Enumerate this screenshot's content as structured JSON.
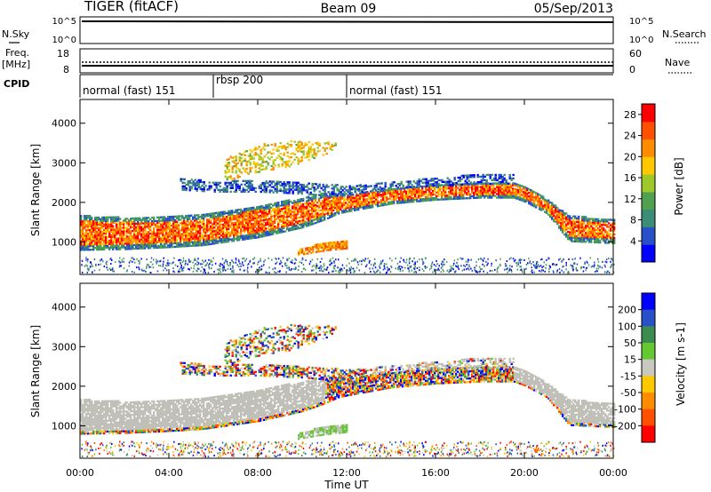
{
  "header": {
    "station": "TIGER (fitACF)",
    "beam": "Beam 09",
    "date": "05/Sep/2013"
  },
  "top_panels": {
    "nsky_label": "N.Sky",
    "nsky_ticks": [
      "10^5",
      "10^0"
    ],
    "nsearch_label": "N.Search",
    "freq_label_1": "Freq.",
    "freq_label_2": "[MHz]",
    "freq_ticks": [
      "18",
      "8"
    ],
    "nave_label": "Nave",
    "nave_ticks": [
      "60",
      "0"
    ],
    "cpid_label": "CPID",
    "cpid_segments": [
      {
        "label": "normal (fast) 151",
        "start_h": 0,
        "end_h": 6
      },
      {
        "label": "rbsp 200",
        "start_h": 6,
        "end_h": 12
      },
      {
        "label": "normal (fast) 151",
        "start_h": 12,
        "end_h": 24
      }
    ]
  },
  "colors": {
    "power": [
      "#0000ff",
      "#2850c8",
      "#3c8c78",
      "#50a050",
      "#a0c828",
      "#ffc800",
      "#ff8c00",
      "#ff5000",
      "#ff0000"
    ],
    "velocity": [
      "#0000ff",
      "#2850c8",
      "#3c8c50",
      "#64c832",
      "#c8c8c0",
      "#ffc800",
      "#ff8c00",
      "#ff5000",
      "#ff0000"
    ],
    "ground_scatter": "#c0c0b8"
  },
  "chart_data": [
    {
      "type": "heatmap",
      "title": "Power",
      "xlabel": "",
      "ylabel": "Slant Range [km]",
      "xlim": [
        0,
        24
      ],
      "ylim": [
        180,
        4600
      ],
      "x_ticks": [
        0,
        4,
        8,
        12,
        16,
        20,
        24
      ],
      "y_ticks": [
        1000,
        2000,
        3000,
        4000
      ],
      "colorbar": {
        "label": "Power [dB]",
        "ticks": [
          4,
          8,
          12,
          16,
          20,
          24,
          28
        ],
        "range": [
          0,
          30
        ]
      },
      "bands": [
        {
          "t": [
            0,
            2,
            4,
            5.5,
            8,
            10,
            11,
            11.6,
            12,
            12.5,
            14,
            16,
            18,
            19.5,
            20,
            21,
            22,
            24
          ],
          "low": [
            780,
            800,
            850,
            900,
            1100,
            1350,
            1550,
            1700,
            1750,
            1800,
            1950,
            2050,
            2100,
            2100,
            2000,
            1700,
            1000,
            950
          ],
          "high": [
            1650,
            1600,
            1620,
            1680,
            1900,
            2100,
            2200,
            2200,
            2200,
            2250,
            2350,
            2420,
            2480,
            2500,
            2400,
            2050,
            1650,
            1550
          ],
          "power": 22
        },
        {
          "t": [
            4.5,
            6,
            8,
            10,
            11,
            12,
            13,
            14,
            16,
            18,
            19.5
          ],
          "low": [
            2300,
            2250,
            2250,
            2200,
            2150,
            2150,
            2300,
            2350,
            2400,
            2450,
            2450
          ],
          "high": [
            2600,
            2500,
            2550,
            2500,
            2450,
            2400,
            2450,
            2500,
            2600,
            2700,
            2700
          ],
          "power": 6
        },
        {
          "t": [
            6.5,
            7.5,
            8.5,
            9.5,
            10.5,
            11.5
          ],
          "low": [
            2500,
            2700,
            2800,
            2900,
            3100,
            3300
          ],
          "high": [
            3100,
            3300,
            3500,
            3550,
            3500,
            3500
          ],
          "power": 18
        },
        {
          "t": [
            9.8,
            10.5,
            11.2,
            12.0
          ],
          "low": [
            650,
            720,
            780,
            820
          ],
          "high": [
            780,
            900,
            980,
            1000
          ],
          "power": 22
        }
      ]
    },
    {
      "type": "heatmap",
      "title": "Velocity",
      "xlabel": "Time UT",
      "ylabel": "Slant Range [km]",
      "xlim": [
        0,
        24
      ],
      "ylim": [
        180,
        4600
      ],
      "x_ticks": [
        0,
        4,
        8,
        12,
        16,
        20,
        24
      ],
      "x_tick_labels": [
        "00:00",
        "04:00",
        "08:00",
        "12:00",
        "16:00",
        "20:00",
        "00:00"
      ],
      "y_ticks": [
        1000,
        2000,
        3000,
        4000
      ],
      "colorbar": {
        "label": "Velocity [m s-1]",
        "ticks": [
          200,
          100,
          50,
          15,
          -15,
          -50,
          -100,
          -200
        ]
      },
      "ground_scatter_dominant": true
    }
  ]
}
